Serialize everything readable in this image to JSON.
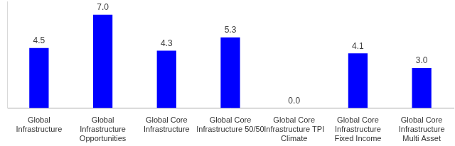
{
  "chart_data": {
    "type": "bar",
    "categories": [
      [
        "Global",
        "Infrastructure"
      ],
      [
        "Global",
        "Infrastructure",
        "Opportunities"
      ],
      [
        "Global Core",
        "Infrastructure"
      ],
      [
        "Global Core",
        "Infrastructure 50/50"
      ],
      [
        "Global Core",
        "Infrastructure TPI",
        "Climate"
      ],
      [
        "Global Core",
        "Infrastructure",
        "Fixed Income"
      ],
      [
        "Global Core",
        "Infrastructure",
        "Multi Asset"
      ]
    ],
    "values": [
      4.5,
      7.0,
      4.3,
      5.3,
      0.0,
      4.1,
      3.0
    ],
    "value_labels": [
      "4.5",
      "7.0",
      "4.3",
      "5.3",
      "0.0",
      "4.1",
      "3.0"
    ],
    "color": "#0000ff",
    "ylim": [
      0,
      8
    ],
    "grid": false,
    "data_labels": true,
    "tick_labels": "x"
  }
}
